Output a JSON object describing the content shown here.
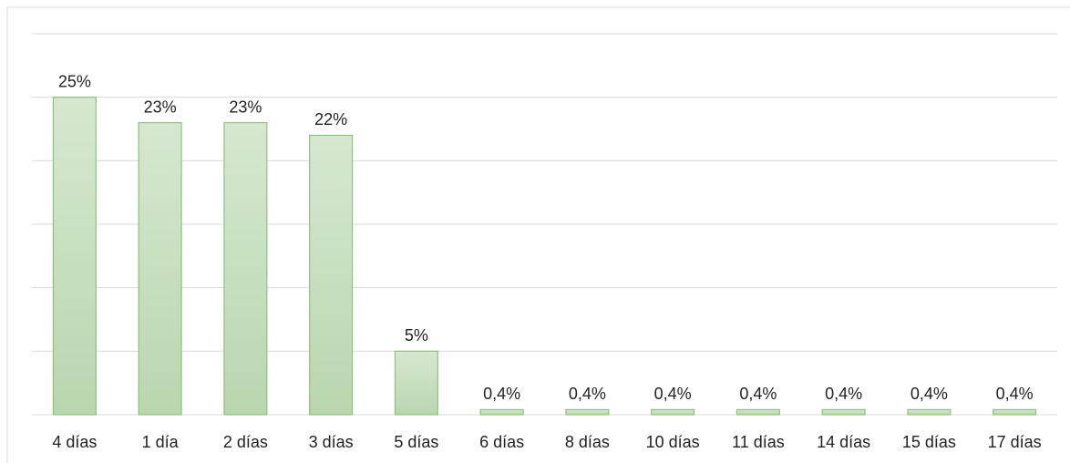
{
  "chart_data": {
    "type": "bar",
    "categories": [
      "4 días",
      "1 día",
      "2 días",
      "3 días",
      "5 días",
      "6 días",
      "8 días",
      "10 días",
      "11 días",
      "14 días",
      "15 días",
      "17 días"
    ],
    "values": [
      25,
      23,
      23,
      22,
      5,
      0.4,
      0.4,
      0.4,
      0.4,
      0.4,
      0.4,
      0.4
    ],
    "value_labels": [
      "25%",
      "23%",
      "23%",
      "22%",
      "5%",
      "0,4%",
      "0,4%",
      "0,4%",
      "0,4%",
      "0,4%",
      "0,4%",
      "0,4%"
    ],
    "color": "#c4dcbc",
    "ylim": [
      0,
      30
    ],
    "yticks": [
      0,
      5,
      10,
      15,
      20,
      25,
      30
    ],
    "grid": true
  }
}
